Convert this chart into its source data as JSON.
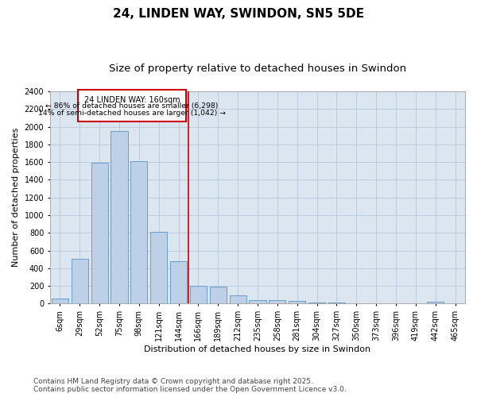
{
  "title": "24, LINDEN WAY, SWINDON, SN5 5DE",
  "subtitle": "Size of property relative to detached houses in Swindon",
  "xlabel": "Distribution of detached houses by size in Swindon",
  "ylabel": "Number of detached properties",
  "categories": [
    "6sqm",
    "29sqm",
    "52sqm",
    "75sqm",
    "98sqm",
    "121sqm",
    "144sqm",
    "166sqm",
    "189sqm",
    "212sqm",
    "235sqm",
    "258sqm",
    "281sqm",
    "304sqm",
    "327sqm",
    "350sqm",
    "373sqm",
    "396sqm",
    "419sqm",
    "442sqm",
    "465sqm"
  ],
  "values": [
    55,
    510,
    1590,
    1950,
    1610,
    810,
    480,
    200,
    195,
    90,
    40,
    40,
    30,
    15,
    10,
    0,
    0,
    0,
    0,
    25,
    0
  ],
  "bar_color": "#bdd0e8",
  "bar_edge_color": "#6b9ec8",
  "bg_color": "#dce6f0",
  "vline_color": "#cc0000",
  "annotation_title": "24 LINDEN WAY: 160sqm",
  "annotation_line1": "← 86% of detached houses are smaller (6,298)",
  "annotation_line2": "14% of semi-detached houses are larger (1,042) →",
  "annotation_box_edge": "#cc0000",
  "ylim": [
    0,
    2400
  ],
  "yticks": [
    0,
    200,
    400,
    600,
    800,
    1000,
    1200,
    1400,
    1600,
    1800,
    2000,
    2200,
    2400
  ],
  "footer": "Contains HM Land Registry data © Crown copyright and database right 2025.\nContains public sector information licensed under the Open Government Licence v3.0.",
  "grid_color": "#b8c8d8",
  "title_fontsize": 11,
  "subtitle_fontsize": 9.5,
  "label_fontsize": 8,
  "tick_fontsize": 7,
  "footer_fontsize": 6.5,
  "ann_fontsize": 7,
  "vline_pos": 7.0
}
